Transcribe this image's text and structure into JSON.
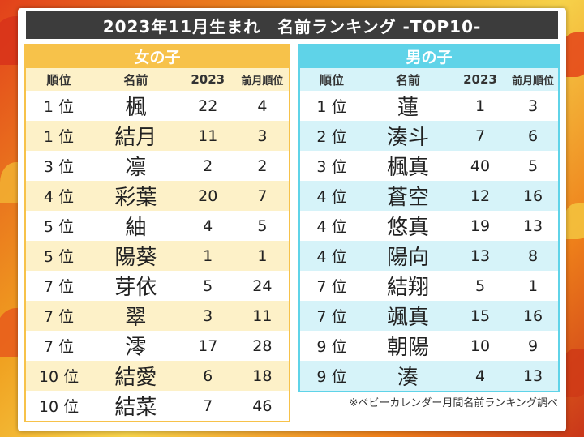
{
  "title": "2023年11月生まれ　名前ランキング -TOP10-",
  "girls": {
    "header": "女の子",
    "columns": {
      "rank": "順位",
      "name": "名前",
      "count": "2023",
      "prev": "前月順位"
    },
    "rows": [
      {
        "rank": "1 位",
        "name": "楓",
        "count": "22",
        "prev": "4"
      },
      {
        "rank": "1 位",
        "name": "結月",
        "count": "11",
        "prev": "3"
      },
      {
        "rank": "3 位",
        "name": "凛",
        "count": "2",
        "prev": "2"
      },
      {
        "rank": "4 位",
        "name": "彩葉",
        "count": "20",
        "prev": "7"
      },
      {
        "rank": "5 位",
        "name": "紬",
        "count": "4",
        "prev": "5"
      },
      {
        "rank": "5 位",
        "name": "陽葵",
        "count": "1",
        "prev": "1"
      },
      {
        "rank": "7 位",
        "name": "芽依",
        "count": "5",
        "prev": "24"
      },
      {
        "rank": "7 位",
        "name": "翠",
        "count": "3",
        "prev": "11"
      },
      {
        "rank": "7 位",
        "name": "澪",
        "count": "17",
        "prev": "28"
      },
      {
        "rank": "10 位",
        "name": "結愛",
        "count": "6",
        "prev": "18"
      },
      {
        "rank": "10 位",
        "name": "結菜",
        "count": "7",
        "prev": "46"
      }
    ]
  },
  "boys": {
    "header": "男の子",
    "columns": {
      "rank": "順位",
      "name": "名前",
      "count": "2023",
      "prev": "前月順位"
    },
    "rows": [
      {
        "rank": "1 位",
        "name": "蓮",
        "count": "1",
        "prev": "3"
      },
      {
        "rank": "2 位",
        "name": "湊斗",
        "count": "7",
        "prev": "6"
      },
      {
        "rank": "3 位",
        "name": "楓真",
        "count": "40",
        "prev": "5"
      },
      {
        "rank": "4 位",
        "name": "蒼空",
        "count": "12",
        "prev": "16"
      },
      {
        "rank": "4 位",
        "name": "悠真",
        "count": "19",
        "prev": "13"
      },
      {
        "rank": "4 位",
        "name": "陽向",
        "count": "13",
        "prev": "8"
      },
      {
        "rank": "7 位",
        "name": "結翔",
        "count": "5",
        "prev": "1"
      },
      {
        "rank": "7 位",
        "name": "颯真",
        "count": "15",
        "prev": "16"
      },
      {
        "rank": "9 位",
        "name": "朝陽",
        "count": "10",
        "prev": "9"
      },
      {
        "rank": "9 位",
        "name": "湊",
        "count": "4",
        "prev": "13"
      }
    ]
  },
  "source_note": "※ベビーカレンダー月間名前ランキング調べ",
  "colors": {
    "girls_accent": "#f7c24a",
    "boys_accent": "#5fd3e8",
    "title_bg": "#3c3c3c"
  }
}
